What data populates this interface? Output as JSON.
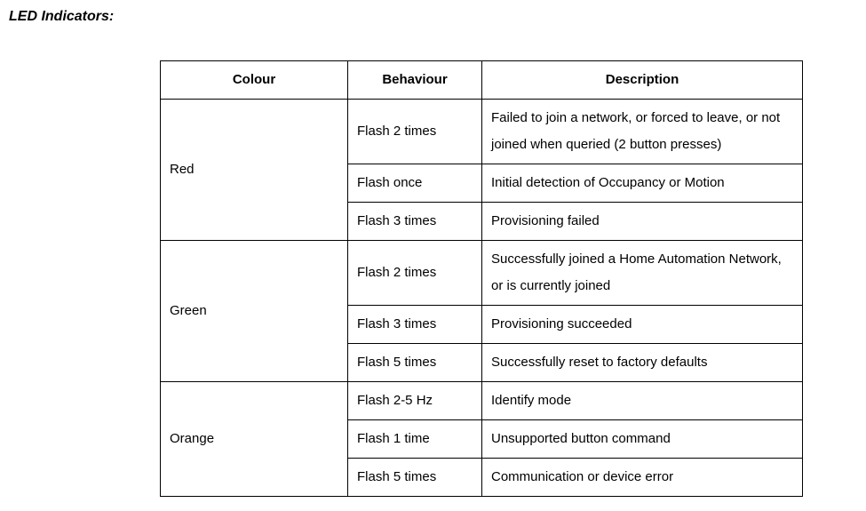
{
  "title": "LED Indicators:",
  "headers": {
    "colour": "Colour",
    "behaviour": "Behaviour",
    "description": "Description"
  },
  "groups": [
    {
      "colour": "Red",
      "rows": [
        {
          "behaviour": "Flash 2 times",
          "description": "Failed to join a network, or forced to leave, or not joined when queried (2 button presses)"
        },
        {
          "behaviour": "Flash once",
          "description": "Initial detection of Occupancy or Motion"
        },
        {
          "behaviour": "Flash 3 times",
          "description": "Provisioning failed"
        }
      ]
    },
    {
      "colour": "Green",
      "rows": [
        {
          "behaviour": "Flash 2 times",
          "description": "Successfully joined a Home Automation Network, or is currently joined"
        },
        {
          "behaviour": "Flash 3 times",
          "description": "Provisioning succeeded"
        },
        {
          "behaviour": "Flash 5 times",
          "description": "Successfully reset to factory defaults"
        }
      ]
    },
    {
      "colour": "Orange",
      "rows": [
        {
          "behaviour": "Flash 2-5 Hz",
          "description": "Identify mode"
        },
        {
          "behaviour": "Flash 1 time",
          "description": "Unsupported button command"
        },
        {
          "behaviour": "Flash 5 times",
          "description": "Communication or device error"
        }
      ]
    }
  ]
}
